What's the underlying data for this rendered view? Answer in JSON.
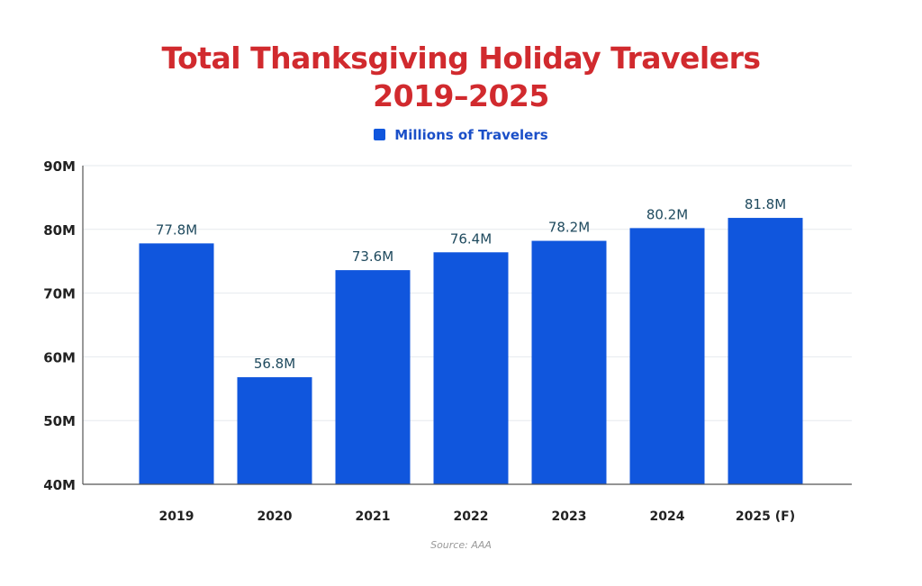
{
  "chart_data": {
    "type": "bar",
    "title": "Total Thanksgiving Holiday Travelers",
    "subtitle": "2019–2025",
    "categories": [
      "2019",
      "2020",
      "2021",
      "2022",
      "2023",
      "2024",
      "2025 (F)"
    ],
    "series": [
      {
        "name": "Millions of Travelers",
        "values": [
          77.8,
          56.8,
          73.6,
          76.4,
          78.2,
          80.2,
          81.8
        ],
        "color": "#1056dd"
      }
    ],
    "data_labels": [
      "77.8M",
      "56.8M",
      "73.6M",
      "76.4M",
      "78.2M",
      "80.2M",
      "81.8M"
    ],
    "ylim": [
      40,
      90
    ],
    "yticks": [
      40,
      50,
      60,
      70,
      80,
      90
    ],
    "ytick_labels": [
      "40M",
      "50M",
      "60M",
      "70M",
      "80M",
      "90M"
    ],
    "xlabel": "",
    "ylabel": "",
    "grid": true,
    "legend": "top-center",
    "source": "Source: AAA",
    "title_color": "#d12a2e"
  }
}
